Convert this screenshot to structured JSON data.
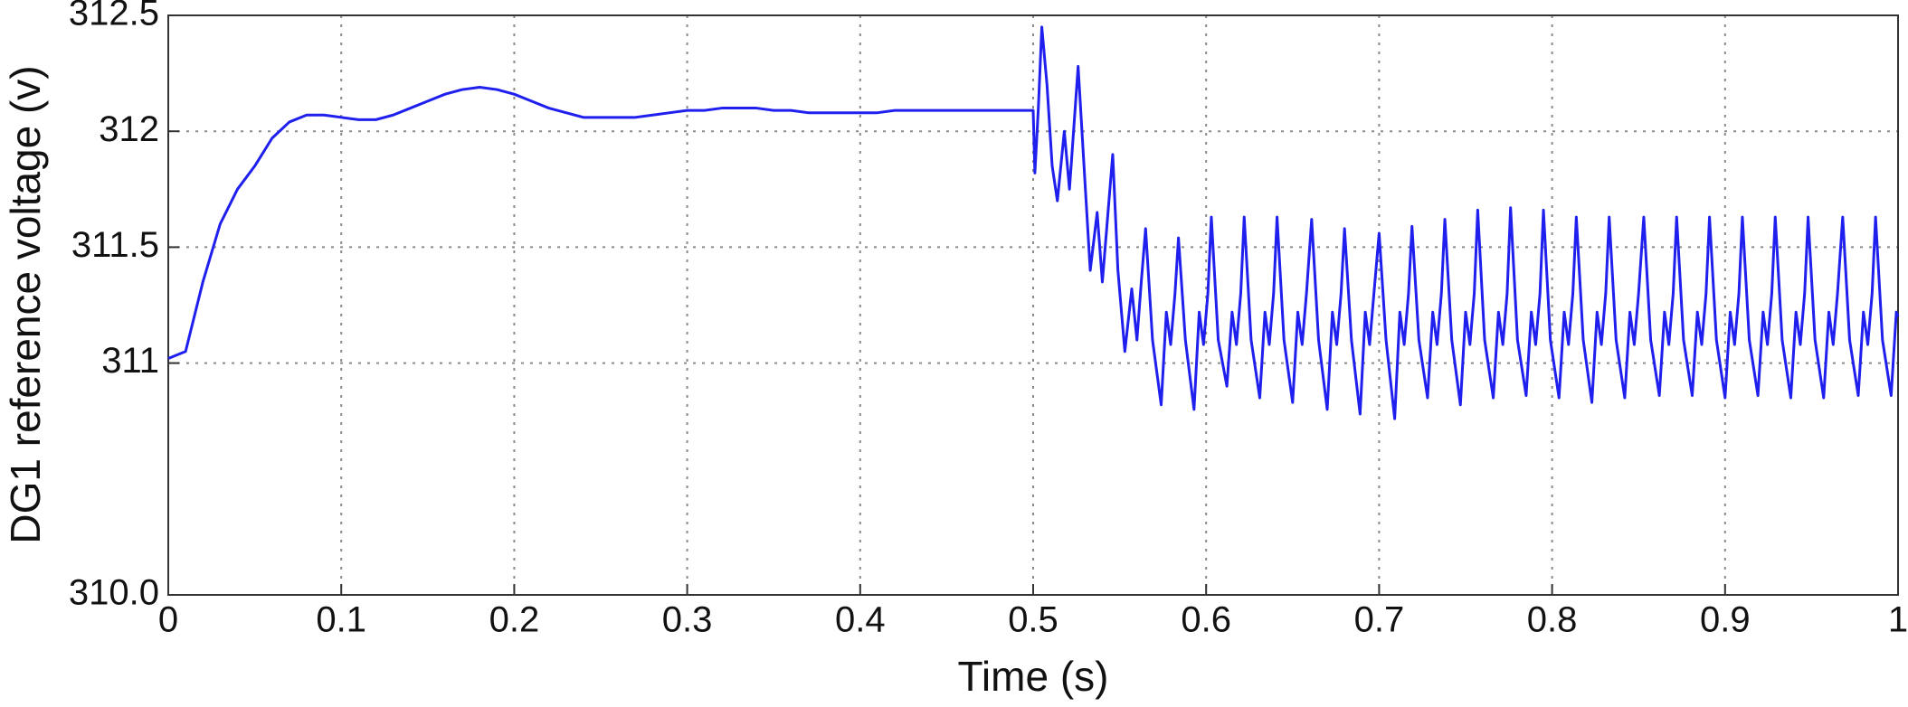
{
  "chart_data": {
    "type": "line",
    "xlabel": "Time (s)",
    "ylabel": "DG1 reference voltage (v)",
    "xlim": [
      0,
      1
    ],
    "xticks": [
      0,
      0.1,
      0.2,
      0.3,
      0.4,
      0.5,
      0.6,
      0.7,
      0.8,
      0.9,
      1
    ],
    "ylim": [
      310,
      312.5
    ],
    "yticks": [
      {
        "value": 310,
        "label": "310.0"
      },
      311,
      311.5,
      312,
      312.5
    ],
    "grid": true,
    "color": "#1f1fee",
    "x": [
      0,
      0.01,
      0.02,
      0.03,
      0.04,
      0.05,
      0.06,
      0.07,
      0.08,
      0.09,
      0.1,
      0.11,
      0.12,
      0.13,
      0.14,
      0.15,
      0.16,
      0.17,
      0.18,
      0.19,
      0.2,
      0.21,
      0.22,
      0.23,
      0.24,
      0.25,
      0.26,
      0.27,
      0.28,
      0.29,
      0.3,
      0.31,
      0.32,
      0.33,
      0.34,
      0.35,
      0.36,
      0.37,
      0.38,
      0.39,
      0.4,
      0.41,
      0.42,
      0.43,
      0.44,
      0.45,
      0.46,
      0.47,
      0.48,
      0.49,
      0.5,
      0.501,
      0.503,
      0.505,
      0.508,
      0.511,
      0.514,
      0.518,
      0.521,
      0.526,
      0.529,
      0.533,
      0.537,
      0.54,
      0.546,
      0.549,
      0.553,
      0.557,
      0.56,
      0.5625,
      0.565,
      0.569,
      0.574,
      0.577,
      0.5795,
      0.582,
      0.584,
      0.588,
      0.593,
      0.596,
      0.5985,
      0.601,
      0.603,
      0.607,
      0.612,
      0.615,
      0.6175,
      0.62,
      0.622,
      0.626,
      0.631,
      0.634,
      0.6365,
      0.639,
      0.641,
      0.645,
      0.65,
      0.653,
      0.6555,
      0.658,
      0.661,
      0.665,
      0.67,
      0.673,
      0.6755,
      0.678,
      0.68,
      0.684,
      0.689,
      0.692,
      0.6945,
      0.697,
      0.7,
      0.704,
      0.709,
      0.712,
      0.7145,
      0.717,
      0.719,
      0.723,
      0.728,
      0.731,
      0.7335,
      0.736,
      0.738,
      0.742,
      0.747,
      0.75,
      0.7525,
      0.755,
      0.757,
      0.761,
      0.766,
      0.769,
      0.7715,
      0.774,
      0.776,
      0.78,
      0.785,
      0.788,
      0.7905,
      0.793,
      0.795,
      0.799,
      0.804,
      0.807,
      0.8095,
      0.812,
      0.814,
      0.818,
      0.823,
      0.826,
      0.8285,
      0.831,
      0.833,
      0.837,
      0.842,
      0.845,
      0.8475,
      0.85,
      0.853,
      0.857,
      0.862,
      0.865,
      0.8675,
      0.87,
      0.872,
      0.876,
      0.881,
      0.884,
      0.8865,
      0.889,
      0.891,
      0.895,
      0.9,
      0.903,
      0.9055,
      0.908,
      0.91,
      0.914,
      0.919,
      0.922,
      0.9245,
      0.927,
      0.929,
      0.933,
      0.938,
      0.941,
      0.9435,
      0.946,
      0.948,
      0.952,
      0.957,
      0.96,
      0.9625,
      0.965,
      0.968,
      0.972,
      0.977,
      0.98,
      0.9825,
      0.985,
      0.987,
      0.991,
      0.996,
      0.999,
      1
    ],
    "values": [
      311.02,
      311.05,
      311.35,
      311.6,
      311.75,
      311.85,
      311.97,
      312.04,
      312.07,
      312.07,
      312.06,
      312.05,
      312.05,
      312.07,
      312.1,
      312.13,
      312.16,
      312.18,
      312.19,
      312.18,
      312.16,
      312.13,
      312.1,
      312.08,
      312.06,
      312.06,
      312.06,
      312.06,
      312.07,
      312.08,
      312.09,
      312.09,
      312.1,
      312.1,
      312.1,
      312.09,
      312.09,
      312.08,
      312.08,
      312.08,
      312.08,
      312.08,
      312.09,
      312.09,
      312.09,
      312.09,
      312.09,
      312.09,
      312.09,
      312.09,
      312.09,
      311.82,
      312.1,
      312.45,
      312.2,
      311.85,
      311.7,
      312.0,
      311.75,
      312.28,
      311.9,
      311.4,
      311.65,
      311.35,
      311.9,
      311.4,
      311.05,
      311.32,
      311.1,
      311.35,
      311.58,
      311.1,
      310.82,
      311.22,
      311.08,
      311.3,
      311.54,
      311.1,
      310.8,
      311.22,
      311.08,
      311.3,
      311.63,
      311.1,
      310.9,
      311.22,
      311.08,
      311.3,
      311.63,
      311.1,
      310.85,
      311.22,
      311.08,
      311.3,
      311.63,
      311.1,
      310.83,
      311.22,
      311.08,
      311.3,
      311.62,
      311.1,
      310.8,
      311.22,
      311.08,
      311.3,
      311.58,
      311.1,
      310.78,
      311.22,
      311.08,
      311.3,
      311.56,
      311.1,
      310.76,
      311.22,
      311.08,
      311.3,
      311.59,
      311.1,
      310.85,
      311.22,
      311.08,
      311.3,
      311.62,
      311.1,
      310.82,
      311.22,
      311.08,
      311.3,
      311.66,
      311.1,
      310.85,
      311.22,
      311.08,
      311.3,
      311.67,
      311.1,
      310.86,
      311.22,
      311.08,
      311.3,
      311.66,
      311.1,
      310.85,
      311.22,
      311.08,
      311.3,
      311.63,
      311.1,
      310.83,
      311.22,
      311.08,
      311.3,
      311.63,
      311.1,
      310.85,
      311.22,
      311.08,
      311.3,
      311.63,
      311.1,
      310.86,
      311.22,
      311.08,
      311.3,
      311.63,
      311.1,
      310.86,
      311.22,
      311.08,
      311.3,
      311.63,
      311.1,
      310.85,
      311.22,
      311.08,
      311.3,
      311.63,
      311.1,
      310.86,
      311.22,
      311.08,
      311.3,
      311.63,
      311.1,
      310.85,
      311.22,
      311.08,
      311.3,
      311.63,
      311.1,
      310.85,
      311.22,
      311.08,
      311.3,
      311.63,
      311.1,
      310.86,
      311.22,
      311.08,
      311.3,
      311.63,
      311.1,
      310.86,
      311.22,
      311.2
    ]
  }
}
